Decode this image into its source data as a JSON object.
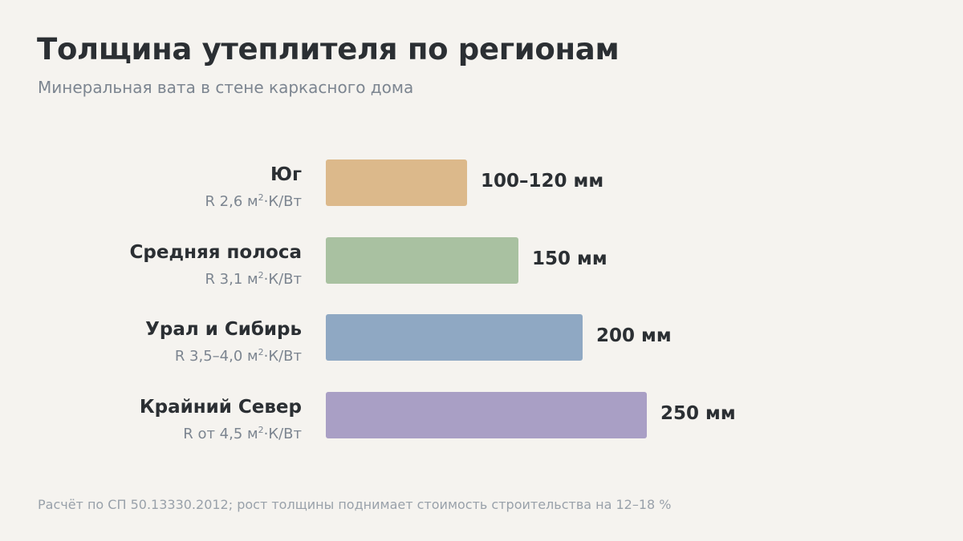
{
  "title": "Толщина утеплителя по регионам",
  "subtitle": "Минеральная вата в стене каркасного дома",
  "footnote": "Расчёт по СП 50.13330.2012; рост толщины поднимает стоимость строительства на 12–18 %",
  "chart_data": {
    "type": "bar",
    "orientation": "horizontal",
    "title": "Толщина утеплителя по регионам",
    "subtitle": "Минеральная вата в стене каркасного дома",
    "xlabel": "",
    "ylabel": "",
    "unit": "мм",
    "xlim": [
      0,
      250
    ],
    "grid": false,
    "categories": [
      "Юг",
      "Средняя полоса",
      "Урал и Сибирь",
      "Крайний Север"
    ],
    "sublabels": [
      {
        "prefix": "R 2,6 м",
        "sup": "2",
        "suffix": "·К/Вт"
      },
      {
        "prefix": "R 3,1 м",
        "sup": "2",
        "suffix": "·К/Вт"
      },
      {
        "prefix": "R 3,5–4,0 м",
        "sup": "2",
        "suffix": "·К/Вт"
      },
      {
        "prefix": "R от 4,5 м",
        "sup": "2",
        "suffix": "·К/Вт"
      }
    ],
    "values": [
      110,
      150,
      200,
      250
    ],
    "value_labels": [
      "100–120 мм",
      "150 мм",
      "200 мм",
      "250 мм"
    ],
    "colors": [
      "#dcb98b",
      "#a9c1a1",
      "#8fa8c3",
      "#a99fc5"
    ]
  }
}
